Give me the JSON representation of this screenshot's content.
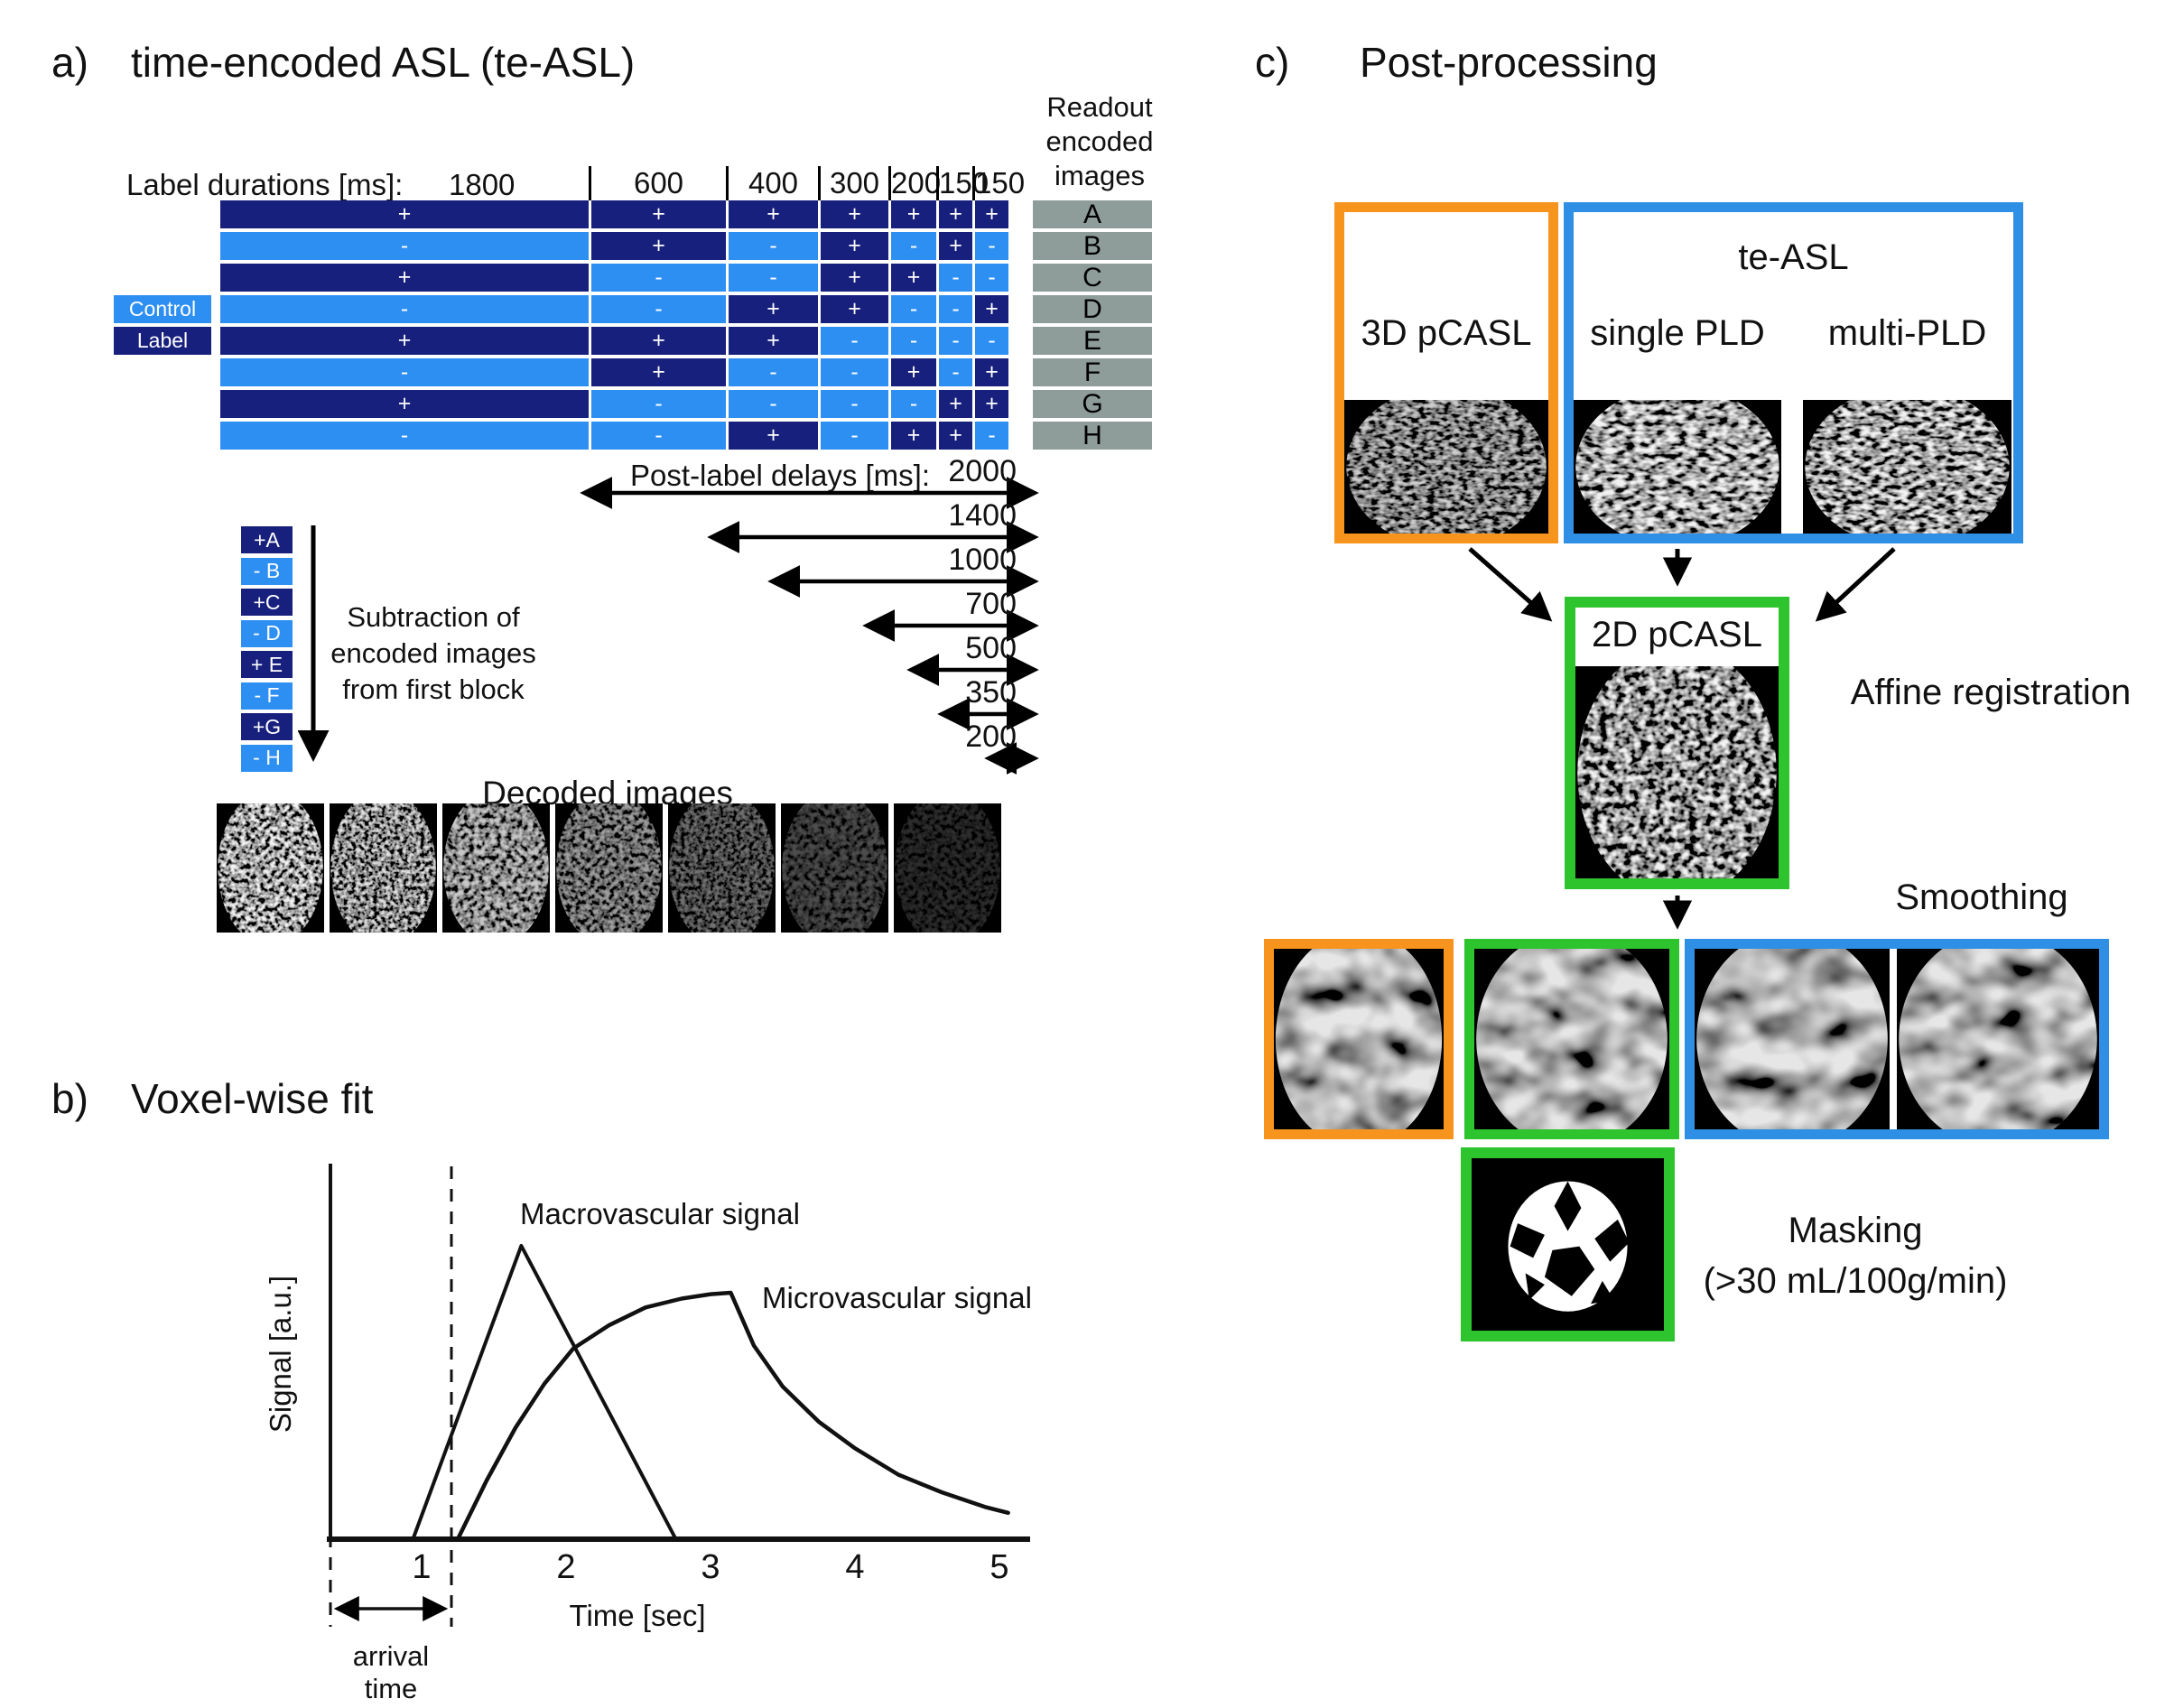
{
  "colors": {
    "dark_blue": "#18207E",
    "light_blue": "#2E8FF2",
    "panelc_blue": "#2E8FE4",
    "orange": "#F7941E",
    "green": "#2DC42D",
    "readout_gray": "#8F9D9A",
    "ink": "#111111"
  },
  "panel_a": {
    "tag": "a)",
    "title": "time-encoded ASL (te-ASL)",
    "durations_label": "Label durations [ms]:",
    "durations": [
      "1800",
      "600",
      "400",
      "300",
      "200",
      "150",
      "150"
    ],
    "encoding_rows": [
      {
        "readout": "A",
        "signs": [
          "+",
          "+",
          "+",
          "+",
          "+",
          "+",
          "+"
        ]
      },
      {
        "readout": "B",
        "signs": [
          "-",
          "+",
          "-",
          "+",
          "-",
          "+",
          "-"
        ]
      },
      {
        "readout": "C",
        "signs": [
          "+",
          "-",
          "-",
          "+",
          "+",
          "-",
          "-"
        ]
      },
      {
        "readout": "D",
        "signs": [
          "-",
          "-",
          "+",
          "+",
          "-",
          "-",
          "+"
        ]
      },
      {
        "readout": "E",
        "signs": [
          "+",
          "+",
          "+",
          "-",
          "-",
          "-",
          "-"
        ]
      },
      {
        "readout": "F",
        "signs": [
          "-",
          "+",
          "-",
          "-",
          "+",
          "-",
          "+"
        ]
      },
      {
        "readout": "G",
        "signs": [
          "+",
          "-",
          "-",
          "-",
          "-",
          "+",
          "+"
        ]
      },
      {
        "readout": "H",
        "signs": [
          "-",
          "-",
          "+",
          "-",
          "+",
          "+",
          "-"
        ]
      }
    ],
    "legend": {
      "control": "Control",
      "label": "Label"
    },
    "readout_header": [
      "Readout",
      "encoded",
      "images"
    ],
    "pld_label": "Post-label delays [ms]:",
    "plds": [
      "2000",
      "1400",
      "1000",
      "700",
      "500",
      "350",
      "200"
    ],
    "subtraction_blocks": [
      "+A",
      "- B",
      "+C",
      "- D",
      "+ E",
      "- F",
      "+G",
      "- H"
    ],
    "subtraction_note": [
      "Subtraction of",
      "encoded images",
      "from first block"
    ],
    "decoded_title": "Decoded images",
    "decoded_count": 7
  },
  "panel_b": {
    "tag": "b)",
    "title": "Voxel-wise fit",
    "ylabel": "Signal [a.u.]",
    "xlabel": "Time [sec]",
    "macro_label": "Macrovascular signal",
    "micro_label": "Microvascular signal",
    "arrival_line1": "arrival",
    "arrival_line2": "time"
  },
  "panel_c": {
    "tag": "c)",
    "title": "Post-processing",
    "box_3d": "3D pCASL",
    "box_teasl": "te-ASL",
    "single_pld": "single PLD",
    "multi_pld": "multi-PLD",
    "box_2d": "2D pCASL",
    "affine": "Affine registration",
    "smoothing": "Smoothing",
    "masking_line1": "Masking",
    "masking_line2": "(>30 mL/100g/min)"
  },
  "chart_data": {
    "type": "line",
    "title": "Voxel-wise fit",
    "xlabel": "Time [sec]",
    "ylabel": "Signal [a.u.]",
    "xticks": [
      1,
      2,
      3,
      4,
      5
    ],
    "xlim": [
      0,
      5.3
    ],
    "ylim": [
      0,
      1.05
    ],
    "grid": false,
    "dashed_vline_x": 1.2,
    "arrival_time_span": [
      0.37,
      1.2
    ],
    "legend_position": "inline-annotations",
    "series": [
      {
        "name": "Macrovascular signal",
        "x": [
          0.94,
          1.69,
          2.76
        ],
        "y": [
          0,
          1,
          0
        ]
      },
      {
        "name": "Microvascular signal",
        "x": [
          1.25,
          1.45,
          1.65,
          1.85,
          2.05,
          2.3,
          2.55,
          2.8,
          3.0,
          3.14,
          3.3,
          3.5,
          3.75,
          4.0,
          4.3,
          4.6,
          4.9,
          5.06
        ],
        "y": [
          0,
          0.2,
          0.38,
          0.53,
          0.65,
          0.73,
          0.79,
          0.82,
          0.835,
          0.84,
          0.66,
          0.52,
          0.4,
          0.31,
          0.22,
          0.16,
          0.11,
          0.09
        ]
      }
    ]
  }
}
